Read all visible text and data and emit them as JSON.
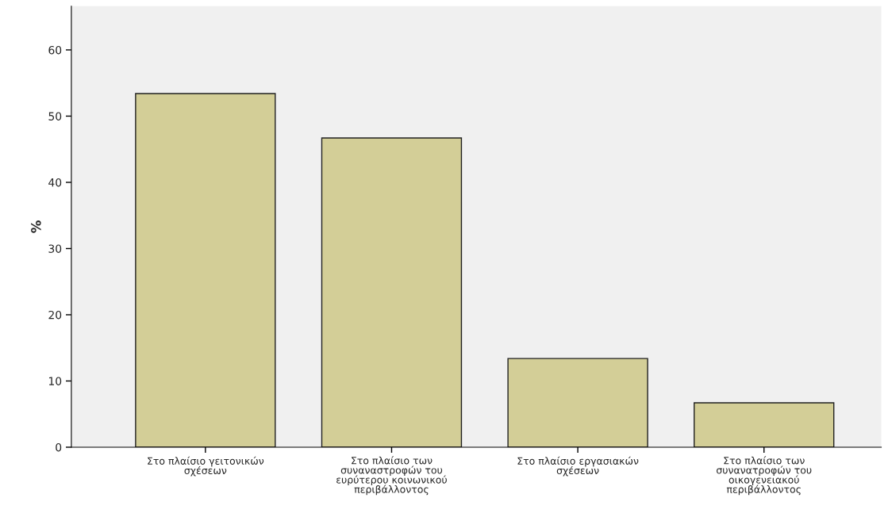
{
  "chart_data": {
    "type": "bar",
    "ylabel": "%",
    "categories": [
      "Στο πλαίσιο γειτονικών\nσχέσεων",
      "Στο πλαίσιο των\nσυναναστροφών του\nευρύτερου κοινωνικού\nπεριβάλλοντος",
      "Στο πλαίσιο εργασιακών\nσχέσεων",
      "Στο πλαίσιο των\nσυνανατροφών του\nοικογενειακού\nπεριβάλλοντος"
    ],
    "values": [
      53.4,
      46.7,
      13.4,
      6.7
    ],
    "color": "#d3ce97",
    "ylim": [
      0,
      66.6
    ],
    "yticks": [
      0,
      10,
      20,
      30,
      40,
      50,
      60
    ],
    "grid": false,
    "legend": false
  }
}
